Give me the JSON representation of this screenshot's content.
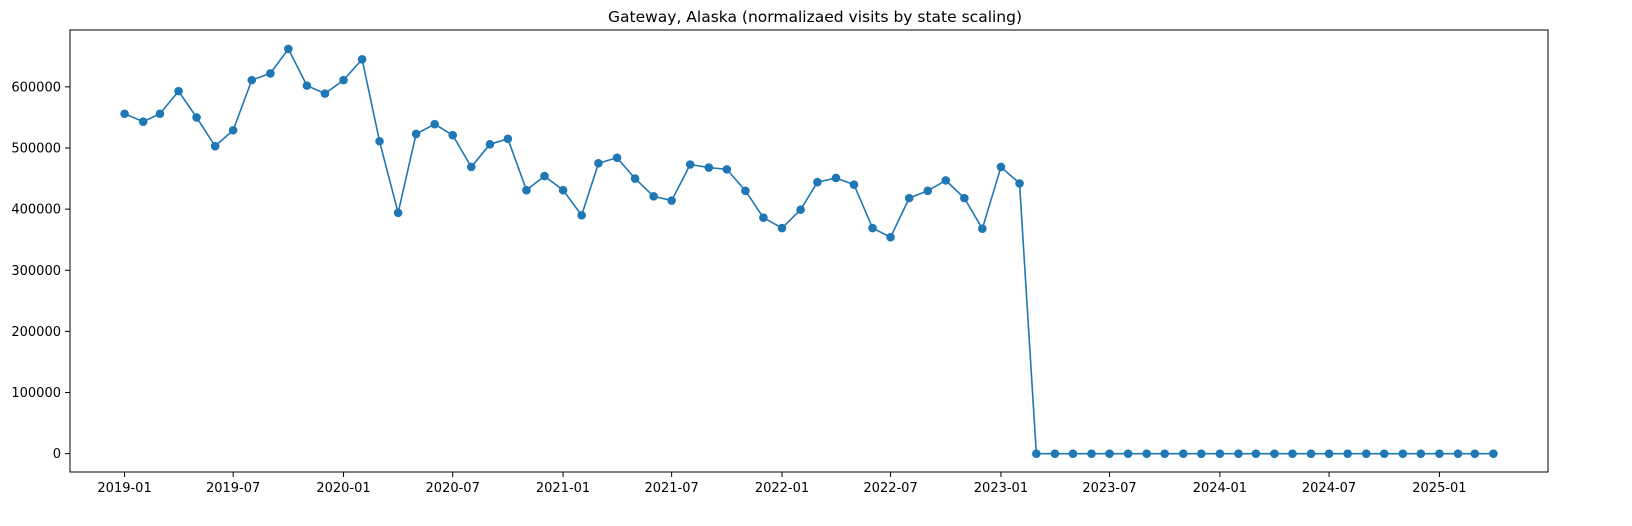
{
  "chart_data": {
    "type": "line",
    "title": "Gateway, Alaska (normalizaed visits by state scaling)",
    "xlabel": "",
    "ylabel": "",
    "x_tick_labels": [
      "2019-01",
      "2019-07",
      "2020-01",
      "2020-07",
      "2021-01",
      "2021-07",
      "2022-01",
      "2022-07",
      "2023-01",
      "2023-07",
      "2024-01",
      "2024-07",
      "2025-01"
    ],
    "y_tick_labels": [
      "0",
      "100000",
      "200000",
      "300000",
      "400000",
      "500000",
      "600000"
    ],
    "y_ticks": [
      0,
      100000,
      200000,
      300000,
      400000,
      500000,
      600000
    ],
    "ylim": [
      -30000,
      693000
    ],
    "xlim": [
      "2018-10-02",
      "2025-07-01"
    ],
    "grid": false,
    "marker": "circle",
    "color": "#1f77b4",
    "series": [
      {
        "x": [
          "2019-01-01",
          "2019-02-01",
          "2019-03-01",
          "2019-04-01",
          "2019-05-01",
          "2019-06-01",
          "2019-07-01",
          "2019-08-01",
          "2019-09-01",
          "2019-10-01",
          "2019-11-01",
          "2019-12-01",
          "2020-01-01",
          "2020-02-01",
          "2020-03-01",
          "2020-04-01",
          "2020-05-01",
          "2020-06-01",
          "2020-07-01",
          "2020-08-01",
          "2020-09-01",
          "2020-10-01",
          "2020-11-01",
          "2020-12-01",
          "2021-01-01",
          "2021-02-01",
          "2021-03-01",
          "2021-04-01",
          "2021-05-01",
          "2021-06-01",
          "2021-07-01",
          "2021-08-01",
          "2021-09-01",
          "2021-10-01",
          "2021-11-01",
          "2021-12-01",
          "2022-01-01",
          "2022-02-01",
          "2022-03-01",
          "2022-04-01",
          "2022-05-01",
          "2022-06-01",
          "2022-07-01",
          "2022-08-01",
          "2022-09-01",
          "2022-10-01",
          "2022-11-01",
          "2022-12-01",
          "2023-01-01",
          "2023-02-01",
          "2023-03-01",
          "2023-04-01",
          "2023-05-01",
          "2023-06-01",
          "2023-07-01",
          "2023-08-01",
          "2023-09-01",
          "2023-10-01",
          "2023-11-01",
          "2023-12-01",
          "2024-01-01",
          "2024-02-01",
          "2024-03-01",
          "2024-04-01",
          "2024-05-01",
          "2024-06-01",
          "2024-07-01",
          "2024-08-01",
          "2024-09-01",
          "2024-10-01",
          "2024-11-01",
          "2024-12-01",
          "2025-01-01",
          "2025-02-01",
          "2025-03-01",
          "2025-04-01"
        ],
        "y": [
          556000,
          543000,
          556000,
          593000,
          550000,
          503000,
          529000,
          611000,
          622000,
          662000,
          602000,
          589000,
          611000,
          645000,
          511000,
          394000,
          523000,
          539000,
          521000,
          469000,
          506000,
          515000,
          431000,
          454000,
          431000,
          390000,
          475000,
          484000,
          450000,
          421000,
          414000,
          473000,
          468000,
          465000,
          430000,
          386000,
          369000,
          399000,
          444000,
          451000,
          440000,
          369000,
          354000,
          418000,
          430000,
          447000,
          418000,
          368000,
          469000,
          442000,
          0,
          0,
          0,
          0,
          0,
          0,
          0,
          0,
          0,
          0,
          0,
          0,
          0,
          0,
          0,
          0,
          0,
          0,
          0,
          0,
          0,
          0,
          0,
          0,
          0,
          0
        ]
      }
    ]
  }
}
